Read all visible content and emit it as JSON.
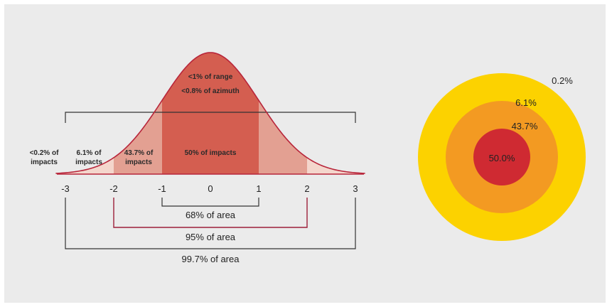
{
  "colors": {
    "background": "#ebebeb",
    "band_inner": "#d45e50",
    "band_mid": "#e3a092",
    "band_outer": "#f4d6cc",
    "curve": "#b8253a",
    "bracket_bottom": "#333333",
    "bracket_mid": "#9c1f3a",
    "ring_outer": "#fcd200",
    "ring_mid": "#f39a22",
    "ring_inner": "#cf2a32"
  },
  "bell_curve": {
    "top_labels": [
      "<1% of range",
      "<0.8% of azimuth"
    ],
    "region_labels": {
      "center": "50% of impacts",
      "mid": [
        "43.7% of",
        "impacts"
      ],
      "outer": [
        "6.1% of",
        "impacts"
      ],
      "tail": [
        "<0.2% of",
        "impacts"
      ]
    },
    "ticks": [
      "-3",
      "-2",
      "-1",
      "0",
      "1",
      "2",
      "3"
    ]
  },
  "area_brackets": [
    "68% of area",
    "95% of area",
    "99.7% of area"
  ],
  "target": {
    "labels": [
      "0.2%",
      "6.1%",
      "43.7%",
      "50.0%"
    ]
  }
}
